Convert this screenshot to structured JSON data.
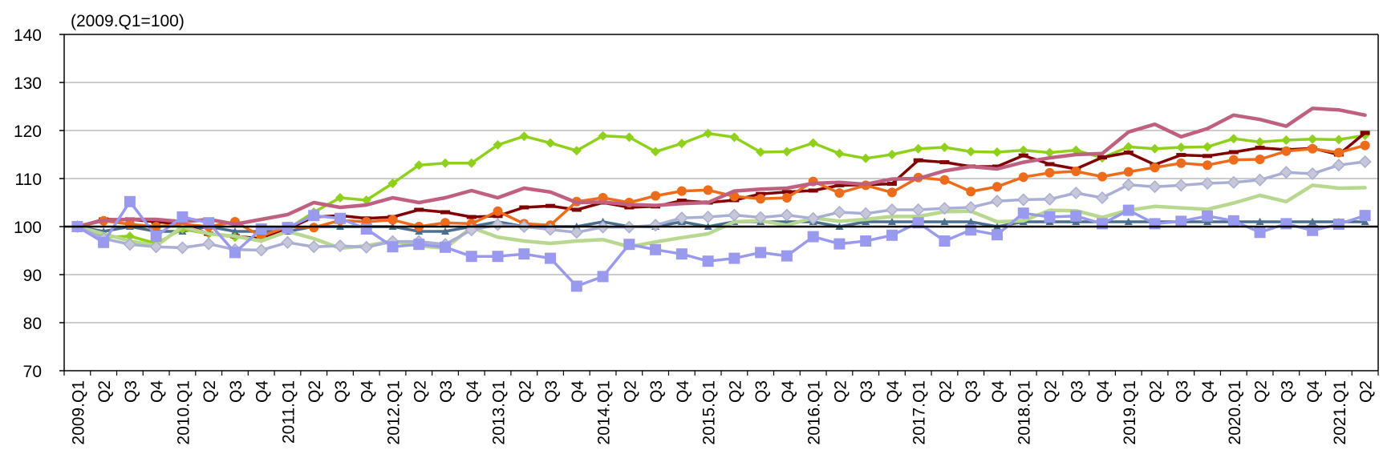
{
  "chart_data": {
    "type": "line",
    "note": "(2009.Q1=100)",
    "categories": [
      "2009.Q1",
      "Q2",
      "Q3",
      "Q4",
      "2010.Q1",
      "Q2",
      "Q3",
      "Q4",
      "2011.Q1",
      "Q2",
      "Q3",
      "Q4",
      "2012.Q1",
      "Q2",
      "Q3",
      "Q4",
      "2013.Q1",
      "Q2",
      "Q3",
      "Q4",
      "2014.Q1",
      "Q2",
      "Q3",
      "Q4",
      "2015.Q1",
      "Q2",
      "Q3",
      "Q4",
      "2016.Q1",
      "Q2",
      "Q3",
      "Q4",
      "2017.Q1",
      "Q2",
      "Q3",
      "Q4",
      "2018.Q1",
      "Q2",
      "Q3",
      "Q4",
      "2019.Q1",
      "Q2",
      "Q3",
      "Q4",
      "2020.Q1",
      "Q2",
      "Q3",
      "Q4",
      "2021.Q1",
      "Q2"
    ],
    "ylim": [
      70,
      140
    ],
    "yticks": [
      70,
      80,
      90,
      100,
      110,
      120,
      130,
      140
    ],
    "reference_line": 100,
    "grid": "horizontal",
    "series": [
      {
        "color": "#4a7090",
        "marker": "triangle",
        "values": [
          100,
          99,
          100,
          99,
          99,
          100,
          99,
          99,
          99,
          100,
          100,
          100,
          100,
          99,
          99,
          100,
          101,
          100,
          100,
          100,
          101,
          100,
          100,
          101,
          100,
          101,
          101,
          101,
          101,
          100,
          101,
          101,
          101,
          101,
          101,
          100,
          101,
          101,
          101,
          101,
          101,
          101,
          101,
          101,
          101,
          101,
          101,
          101,
          101,
          101
        ]
      },
      {
        "color": "#8fd11a",
        "marker": "diamond",
        "values": [
          100,
          97.8,
          98,
          96.5,
          99.5,
          98.5,
          97.8,
          97.5,
          99.5,
          103,
          106,
          105.5,
          109,
          112.8,
          113.2,
          113.2,
          117,
          118.8,
          117.4,
          115.8,
          118.9,
          118.6,
          115.6,
          117.3,
          119.4,
          118.6,
          115.5,
          115.6,
          117.4,
          115.2,
          114.2,
          115,
          116.2,
          116.5,
          115.6,
          115.5,
          115.9,
          115.4,
          115.9,
          114.3,
          116.6,
          116.2,
          116.5,
          116.6,
          118.3,
          117.6,
          118,
          118.2,
          118.1,
          119
        ]
      },
      {
        "color": "#800000",
        "marker": "dash",
        "values": [
          100,
          101.5,
          101.5,
          101,
          100.5,
          98.5,
          98,
          97.5,
          99.5,
          102,
          102.3,
          101.7,
          102,
          103.5,
          103,
          102,
          102.2,
          104,
          104.3,
          103.5,
          105,
          104,
          104.2,
          105.4,
          105,
          105.5,
          106.8,
          107.2,
          107.5,
          108.6,
          108.7,
          108.9,
          113.8,
          113.4,
          112.5,
          112.5,
          114.8,
          113,
          112,
          114.4,
          115.4,
          112.9,
          114.9,
          114.7,
          115.5,
          116.4,
          116,
          116.3,
          115,
          119.5
        ]
      },
      {
        "color": "#ec6c1c",
        "marker": "circle",
        "values": [
          100,
          101.2,
          100.5,
          100,
          100.5,
          100,
          101,
          98,
          100,
          99.8,
          101.3,
          101,
          101.4,
          100,
          100.8,
          100.6,
          103.2,
          100.6,
          100.3,
          105.2,
          106,
          105,
          106.4,
          107.4,
          107.6,
          106.3,
          105.8,
          106,
          109.4,
          107,
          108.6,
          107.1,
          110.2,
          109.7,
          107.3,
          108.3,
          110.3,
          111.2,
          111.5,
          110.4,
          111.4,
          112.3,
          113.2,
          112.8,
          113.9,
          114,
          115.7,
          116.2,
          115.4,
          116.9
        ]
      },
      {
        "color": "#c06080",
        "marker": "none",
        "values": [
          100,
          101.3,
          101.5,
          101.5,
          101,
          101.5,
          100.5,
          101.5,
          102.5,
          105,
          104,
          104.5,
          106,
          105,
          106,
          107.5,
          106,
          108,
          107.2,
          105,
          105.1,
          104.6,
          104.4,
          104.8,
          105,
          107.4,
          107.8,
          108,
          109,
          109.2,
          108.8,
          109.9,
          110,
          111.6,
          112.5,
          112,
          113.4,
          114.3,
          115,
          115.2,
          119.7,
          121.3,
          118.7,
          120.4,
          123.2,
          122.3,
          120.9,
          124.6,
          124.3,
          123.2
        ]
      },
      {
        "color": "#b8d890",
        "marker": "none",
        "values": [
          100,
          98.5,
          97,
          96,
          100,
          98.5,
          98,
          97,
          99,
          97.5,
          95.5,
          96,
          97,
          96,
          95.5,
          99.8,
          97.8,
          97,
          96.5,
          97,
          97.3,
          95.8,
          96.8,
          97.7,
          98.5,
          101,
          101.2,
          100.3,
          101.8,
          101.1,
          101.5,
          102.1,
          102.1,
          103.1,
          103.2,
          101,
          101.2,
          103.4,
          103.3,
          101.9,
          103.4,
          104.2,
          103.9,
          103.6,
          104.9,
          106.5,
          105.2,
          108.6,
          108,
          108.1
        ]
      },
      {
        "color": "#a9aed4",
        "marker": "diamond-gray",
        "values": [
          100,
          97.5,
          96.3,
          95.8,
          95.6,
          96.4,
          95.2,
          95.1,
          96.7,
          95.8,
          96,
          95.7,
          96.9,
          96.9,
          96.3,
          99.3,
          100.4,
          100,
          99.4,
          98.8,
          99.9,
          99.9,
          100.3,
          101.8,
          102,
          102.4,
          101.9,
          102.4,
          101.7,
          103,
          102.7,
          103.5,
          103.5,
          103.8,
          104,
          105.3,
          105.6,
          105.7,
          107,
          106,
          108.7,
          108.3,
          108.6,
          109,
          109.2,
          109.7,
          111.3,
          111,
          112.8,
          113.5
        ]
      },
      {
        "color": "#9999ee",
        "marker": "square",
        "values": [
          100,
          96.7,
          105.2,
          98,
          102,
          100.8,
          94.6,
          99.5,
          99.8,
          102.3,
          101.7,
          99.5,
          95.8,
          96.3,
          95.7,
          93.8,
          93.8,
          94.3,
          93.4,
          87.6,
          89.6,
          96.3,
          95.2,
          94.3,
          92.8,
          93.4,
          94.6,
          93.9,
          97.9,
          96.4,
          97,
          98.2,
          100.8,
          97,
          99.3,
          98.3,
          102.8,
          102,
          102.2,
          100.6,
          103.4,
          100.6,
          101.1,
          102.2,
          101.2,
          98.8,
          100.6,
          99.2,
          100.5,
          102.3
        ]
      }
    ]
  }
}
